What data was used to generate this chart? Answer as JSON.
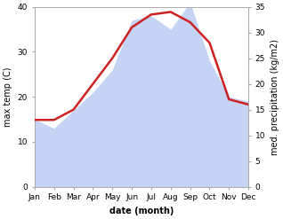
{
  "months": [
    "Jan",
    "Feb",
    "Mar",
    "Apr",
    "May",
    "Jun",
    "Jul",
    "Aug",
    "Sep",
    "Oct",
    "Nov",
    "Dec"
  ],
  "max_temp": [
    15,
    13,
    17,
    21,
    26,
    37,
    38,
    35,
    41,
    28,
    20,
    19
  ],
  "precipitation": [
    13,
    13,
    15,
    20,
    25,
    31,
    33.5,
    34,
    32,
    28,
    17,
    16
  ],
  "temp_fill_color": "#c5d4f5",
  "precip_color": "#cc2222",
  "temp_ylim": [
    0,
    40
  ],
  "precip_ylim": [
    0,
    35
  ],
  "temp_yticks": [
    0,
    10,
    20,
    30,
    40
  ],
  "precip_yticks": [
    0,
    5,
    10,
    15,
    20,
    25,
    30,
    35
  ],
  "xlabel": "date (month)",
  "ylabel_left": "max temp (C)",
  "ylabel_right": "med. precipitation (kg/m2)",
  "axis_fontsize": 7,
  "tick_fontsize": 6.5,
  "precip_linewidth": 1.8,
  "background_color": "#ffffff"
}
